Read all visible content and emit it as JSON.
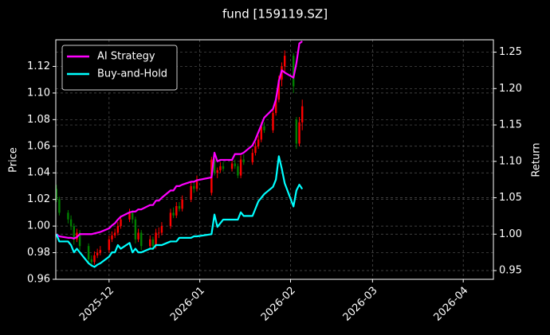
{
  "chart_data": {
    "type": "candlestick",
    "title": "fund [159119.SZ]",
    "ylabel": "Price",
    "y2label": "Return",
    "x": [
      -18,
      -17,
      -14,
      -13,
      -12,
      -11,
      -10,
      -7,
      -6,
      -5,
      -4,
      -3,
      0,
      1,
      2,
      3,
      4,
      7,
      8,
      9,
      10,
      11,
      14,
      15,
      16,
      17,
      18,
      21,
      22,
      23,
      24,
      25,
      28,
      29,
      30,
      35,
      36,
      37,
      38,
      39,
      42,
      43,
      44,
      45,
      46,
      49,
      50,
      51,
      52,
      53,
      56,
      57,
      58,
      59,
      60,
      63,
      64,
      65,
      66
    ],
    "xlim": [
      -18.2,
      131.3
    ],
    "xticks": [
      {
        "value": 0,
        "label": "2025-12"
      },
      {
        "value": 31,
        "label": "2026-01"
      },
      {
        "value": 62,
        "label": "2026-02"
      },
      {
        "value": 90,
        "label": "2026-03"
      },
      {
        "value": 121,
        "label": "2026-04"
      }
    ],
    "open": [
      1.028,
      1.02,
      1.01,
      1.005,
      1.0,
      0.99,
      0.995,
      0.985,
      0.975,
      0.973,
      0.978,
      0.98,
      0.982,
      0.99,
      0.993,
      0.995,
      1.0,
      1.005,
      1.01,
      1.005,
      0.99,
      0.995,
      0.985,
      0.99,
      0.985,
      0.995,
      0.995,
      1.0,
      1.01,
      1.008,
      1.015,
      1.013,
      1.02,
      1.03,
      1.028,
      1.025,
      1.05,
      1.04,
      1.042,
      1.045,
      1.043,
      1.047,
      1.045,
      1.038,
      1.05,
      1.048,
      1.055,
      1.06,
      1.065,
      1.075,
      1.072,
      1.085,
      1.095,
      1.11,
      1.12,
      1.128,
      1.08,
      1.062,
      1.078
    ],
    "high": [
      1.031,
      1.022,
      1.012,
      1.008,
      1.002,
      0.998,
      0.997,
      0.987,
      0.978,
      0.981,
      0.983,
      0.985,
      0.993,
      0.996,
      0.998,
      1.003,
      1.008,
      1.013,
      1.012,
      1.007,
      0.998,
      0.997,
      0.993,
      0.992,
      0.998,
      0.999,
      1.003,
      1.013,
      1.014,
      1.018,
      1.018,
      1.023,
      1.033,
      1.033,
      1.038,
      1.052,
      1.053,
      1.044,
      1.048,
      1.048,
      1.049,
      1.05,
      1.047,
      1.053,
      1.054,
      1.058,
      1.063,
      1.068,
      1.078,
      1.078,
      1.088,
      1.098,
      1.113,
      1.123,
      1.132,
      1.13,
      1.082,
      1.082,
      1.095
    ],
    "low": [
      1.018,
      1.008,
      1.002,
      0.997,
      0.986,
      0.988,
      0.982,
      0.972,
      0.97,
      0.971,
      0.976,
      0.978,
      0.98,
      0.988,
      0.991,
      0.993,
      0.998,
      1.003,
      1.002,
      0.987,
      0.988,
      0.982,
      0.983,
      0.982,
      0.983,
      0.991,
      0.993,
      0.998,
      1.006,
      1.006,
      1.011,
      1.011,
      1.018,
      1.025,
      1.026,
      1.023,
      1.038,
      1.036,
      1.04,
      1.041,
      1.041,
      1.043,
      1.036,
      1.036,
      1.046,
      1.046,
      1.053,
      1.058,
      1.063,
      1.07,
      1.07,
      1.083,
      1.093,
      1.105,
      1.115,
      1.1,
      1.058,
      1.06,
      1.072
    ],
    "close": [
      1.02,
      1.01,
      1.005,
      1.0,
      0.99,
      0.995,
      0.985,
      0.975,
      0.973,
      0.978,
      0.98,
      0.982,
      0.99,
      0.993,
      0.995,
      1.0,
      1.005,
      1.01,
      1.005,
      0.99,
      0.995,
      0.985,
      0.99,
      0.985,
      0.995,
      0.995,
      1.0,
      1.01,
      1.008,
      1.015,
      1.013,
      1.02,
      1.03,
      1.028,
      1.035,
      1.05,
      1.04,
      1.042,
      1.045,
      1.043,
      1.047,
      1.045,
      1.038,
      1.05,
      1.048,
      1.055,
      1.06,
      1.065,
      1.075,
      1.072,
      1.085,
      1.095,
      1.11,
      1.12,
      1.128,
      1.105,
      1.062,
      1.078,
      1.09
    ],
    "up_color": "#ff0000",
    "down_color": "#008000",
    "series": [
      {
        "name": "AI Strategy",
        "color": "#ff00ff",
        "axis": "y2",
        "values": [
          1.0,
          0.997,
          0.995,
          0.995,
          0.994,
          0.996,
          1.0,
          1.0,
          1.0,
          1.001,
          1.002,
          1.003,
          1.008,
          1.012,
          1.015,
          1.02,
          1.024,
          1.03,
          1.031,
          1.031,
          1.034,
          1.034,
          1.04,
          1.04,
          1.046,
          1.046,
          1.05,
          1.06,
          1.06,
          1.066,
          1.066,
          1.068,
          1.072,
          1.072,
          1.074,
          1.078,
          1.112,
          1.1,
          1.102,
          1.102,
          1.102,
          1.11,
          1.11,
          1.11,
          1.112,
          1.122,
          1.13,
          1.14,
          1.15,
          1.16,
          1.172,
          1.185,
          1.21,
          1.225,
          1.222,
          1.215,
          1.235,
          1.262,
          1.265
        ]
      },
      {
        "name": "Buy-and-Hold",
        "color": "#00ffff",
        "axis": "y2",
        "values": [
          1.0,
          0.99,
          0.99,
          0.985,
          0.975,
          0.98,
          0.975,
          0.96,
          0.957,
          0.955,
          0.958,
          0.96,
          0.969,
          0.975,
          0.975,
          0.985,
          0.98,
          0.988,
          0.975,
          0.98,
          0.975,
          0.975,
          0.98,
          0.98,
          0.985,
          0.985,
          0.985,
          0.99,
          0.99,
          0.99,
          0.995,
          0.995,
          0.995,
          0.997,
          0.997,
          1.0,
          1.027,
          1.01,
          1.015,
          1.02,
          1.02,
          1.02,
          1.02,
          1.03,
          1.025,
          1.025,
          1.035,
          1.045,
          1.05,
          1.055,
          1.065,
          1.075,
          1.107,
          1.09,
          1.07,
          1.038,
          1.06,
          1.068,
          1.062
        ]
      }
    ],
    "ylim": [
      0.96,
      1.14
    ],
    "yticks": [
      0.96,
      0.98,
      {
        "value": 1,
        "label": "1.00"
      },
      1.02,
      1.04,
      1.06,
      1.08,
      {
        "value": 1.1,
        "label": "1.10"
      },
      1.12
    ],
    "y2lim": [
      0.938,
      1.267
    ],
    "y2ticks": [
      0.95,
      {
        "value": 1,
        "label": "1.00"
      },
      1.05,
      {
        "value": 1.1,
        "label": "1.10"
      },
      1.15,
      {
        "value": 1.2,
        "label": "1.20"
      },
      1.25
    ],
    "grid": true,
    "legend": "upper left"
  }
}
